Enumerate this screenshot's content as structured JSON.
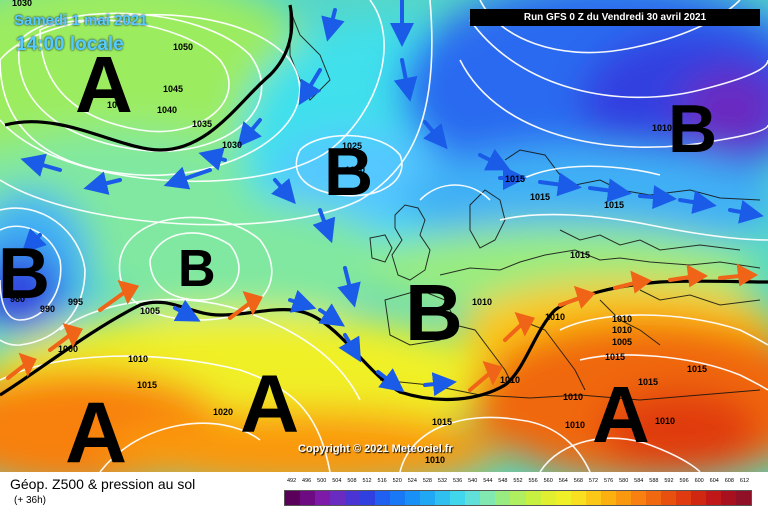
{
  "header": {
    "date_label": "Samedi 1 mai 2021",
    "time_label": "14:00 locale",
    "run_label": "Run GFS 0 Z du Vendredi 30 avril 2021"
  },
  "footer": {
    "product_title": "Géop. Z500 & pression au sol",
    "forecast_hour": "(+ 36h)",
    "scale_values": [
      "492",
      "496",
      "500",
      "504",
      "508",
      "512",
      "516",
      "520",
      "524",
      "528",
      "532",
      "536",
      "540",
      "544",
      "548",
      "552",
      "556",
      "560",
      "564",
      "568",
      "572",
      "576",
      "580",
      "584",
      "588",
      "592",
      "596",
      "600",
      "604",
      "608",
      "612"
    ],
    "scale_colors": [
      "#5a005a",
      "#6e0b82",
      "#7e1aa8",
      "#6a2cc0",
      "#4b34d4",
      "#3040e0",
      "#2060f0",
      "#1878f5",
      "#1890f5",
      "#20a8f5",
      "#30c0f0",
      "#40d6ec",
      "#60e0d8",
      "#80e8b0",
      "#99ec80",
      "#b0f060",
      "#c8f040",
      "#e0f030",
      "#f0f028",
      "#f8e020",
      "#fcc818",
      "#fcb010",
      "#fa9810",
      "#f88010",
      "#f06810",
      "#e85010",
      "#e03a10",
      "#d02810",
      "#c01818",
      "#a81020",
      "#901028"
    ]
  },
  "copyright": "Copyright © 2021 Meteociel.fr",
  "pressure_centers": [
    {
      "type": "A",
      "label": "A"
    },
    {
      "type": "B",
      "label": "B"
    },
    {
      "type": "B",
      "label": "B"
    },
    {
      "type": "B",
      "label": "B"
    },
    {
      "type": "B",
      "label": "B"
    },
    {
      "type": "B",
      "label": "B"
    },
    {
      "type": "A",
      "label": "A"
    },
    {
      "type": "A",
      "label": "A"
    },
    {
      "type": "A",
      "label": "A"
    }
  ],
  "isobar_labels": [
    "1050",
    "1045",
    "1040",
    "1035",
    "1035",
    "1030",
    "1025",
    "1020",
    "1015",
    "1015",
    "1015",
    "1015",
    "1010",
    "1010",
    "1010",
    "1005",
    "1010",
    "1015",
    "1020",
    "1010",
    "1015",
    "1010",
    "1010",
    "1015",
    "1010",
    "1015",
    "1010",
    "1015",
    "995",
    "990",
    "980",
    "1000",
    "1005",
    "1010",
    "1010",
    "1030"
  ],
  "colors": {
    "cold_front_arrow": "#1a5ce8",
    "warm_front_arrow": "#f06418",
    "wind_arrow": "#1a5ce8",
    "front_line": "#000000",
    "isobar": "#ffffff"
  }
}
